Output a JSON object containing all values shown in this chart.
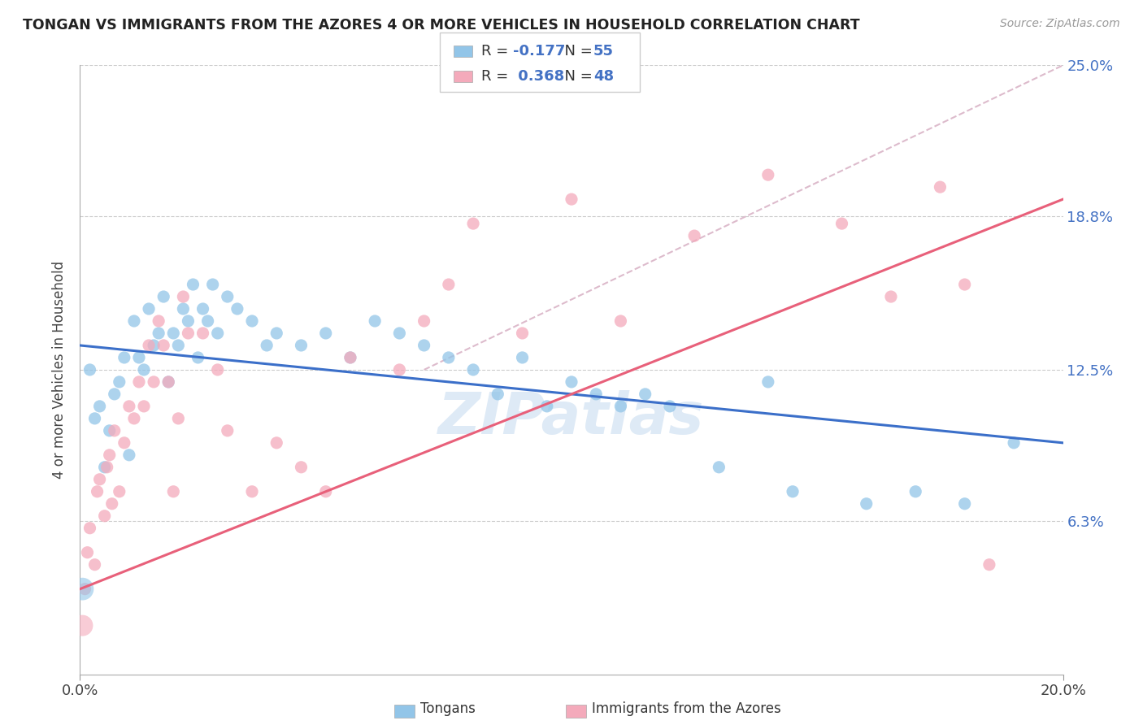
{
  "title": "TONGAN VS IMMIGRANTS FROM THE AZORES 4 OR MORE VEHICLES IN HOUSEHOLD CORRELATION CHART",
  "source": "Source: ZipAtlas.com",
  "ylabel": "4 or more Vehicles in Household",
  "xlim": [
    0.0,
    20.0
  ],
  "ylim": [
    0.0,
    25.0
  ],
  "xticks": [
    0.0,
    20.0
  ],
  "xticklabels": [
    "0.0%",
    "20.0%"
  ],
  "yticks": [
    6.3,
    12.5,
    18.8,
    25.0
  ],
  "yticklabels": [
    "6.3%",
    "12.5%",
    "18.8%",
    "25.0%"
  ],
  "blue_color": "#92C5E8",
  "pink_color": "#F4AABB",
  "blue_line_color": "#3B6FC9",
  "pink_line_color": "#E8607A",
  "gray_dash_color": "#DDBBCC",
  "R_blue": -0.177,
  "N_blue": 55,
  "R_pink": 0.368,
  "N_pink": 48,
  "blue_scatter_x": [
    0.2,
    0.3,
    0.4,
    0.5,
    0.6,
    0.7,
    0.8,
    0.9,
    1.0,
    1.1,
    1.2,
    1.3,
    1.4,
    1.5,
    1.6,
    1.7,
    1.8,
    1.9,
    2.0,
    2.1,
    2.2,
    2.3,
    2.4,
    2.5,
    2.6,
    2.7,
    2.8,
    3.0,
    3.2,
    3.5,
    3.8,
    4.0,
    4.5,
    5.0,
    5.5,
    6.0,
    6.5,
    7.0,
    7.5,
    8.0,
    8.5,
    9.0,
    9.5,
    10.0,
    10.5,
    11.0,
    11.5,
    12.0,
    13.0,
    14.0,
    14.5,
    16.0,
    17.0,
    18.0,
    19.0
  ],
  "blue_scatter_y": [
    12.5,
    10.5,
    11.0,
    8.5,
    10.0,
    11.5,
    12.0,
    13.0,
    9.0,
    14.5,
    13.0,
    12.5,
    15.0,
    13.5,
    14.0,
    15.5,
    12.0,
    14.0,
    13.5,
    15.0,
    14.5,
    16.0,
    13.0,
    15.0,
    14.5,
    16.0,
    14.0,
    15.5,
    15.0,
    14.5,
    13.5,
    14.0,
    13.5,
    14.0,
    13.0,
    14.5,
    14.0,
    13.5,
    13.0,
    12.5,
    11.5,
    13.0,
    11.0,
    12.0,
    11.5,
    11.0,
    11.5,
    11.0,
    8.5,
    12.0,
    7.5,
    7.0,
    7.5,
    7.0,
    9.5
  ],
  "pink_scatter_x": [
    0.1,
    0.15,
    0.2,
    0.3,
    0.35,
    0.4,
    0.5,
    0.55,
    0.6,
    0.65,
    0.7,
    0.8,
    0.9,
    1.0,
    1.1,
    1.2,
    1.3,
    1.4,
    1.5,
    1.6,
    1.7,
    1.8,
    1.9,
    2.0,
    2.1,
    2.2,
    2.5,
    2.8,
    3.0,
    3.5,
    4.0,
    4.5,
    5.0,
    5.5,
    6.5,
    7.0,
    7.5,
    8.0,
    9.0,
    10.0,
    11.0,
    12.5,
    14.0,
    15.5,
    16.5,
    17.5,
    18.0,
    18.5
  ],
  "pink_scatter_y": [
    3.5,
    5.0,
    6.0,
    4.5,
    7.5,
    8.0,
    6.5,
    8.5,
    9.0,
    7.0,
    10.0,
    7.5,
    9.5,
    11.0,
    10.5,
    12.0,
    11.0,
    13.5,
    12.0,
    14.5,
    13.5,
    12.0,
    7.5,
    10.5,
    15.5,
    14.0,
    14.0,
    12.5,
    10.0,
    7.5,
    9.5,
    8.5,
    7.5,
    13.0,
    12.5,
    14.5,
    16.0,
    18.5,
    14.0,
    19.5,
    14.5,
    18.0,
    20.5,
    18.5,
    15.5,
    20.0,
    16.0,
    4.5
  ],
  "blue_line_x0": 0.0,
  "blue_line_x1": 20.0,
  "blue_line_y0": 13.5,
  "blue_line_y1": 9.5,
  "pink_line_x0": 0.0,
  "pink_line_x1": 20.0,
  "pink_line_y0": 3.5,
  "pink_line_y1": 19.5,
  "gray_line_x0": 7.0,
  "gray_line_x1": 20.0,
  "gray_line_y0": 12.5,
  "gray_line_y1": 25.0,
  "dot_size": 120
}
